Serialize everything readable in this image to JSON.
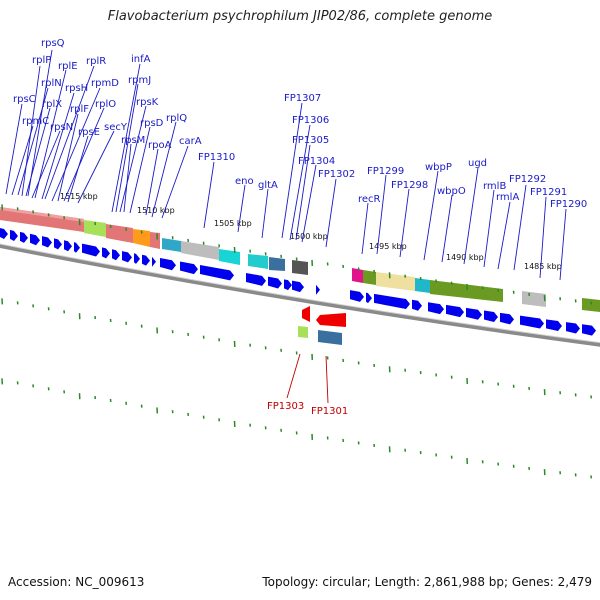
{
  "title": "Flavobacterium psychrophilum JIP02/86, complete genome",
  "footer": {
    "accession": "Accession: NC_009613",
    "stats": "Topology: circular; Length: 2,861,988 bp; Genes: 2,479"
  },
  "colors": {
    "forward_gene": "#0000ee",
    "reverse_gene": "#ee0000",
    "label_forward": "#1a1ac8",
    "label_reverse": "#c00000",
    "backbone": "#888888",
    "tick": "#2a8a2a"
  },
  "scale_labels": [
    "1515 kbp",
    "1510 kbp",
    "1505 kbp",
    "1500 kbp",
    "1495 kbp",
    "1490 kbp",
    "1485 kbp"
  ],
  "gene_labels_forward": [
    "rpsQ",
    "rplP",
    "rplE",
    "rplR",
    "rpsC",
    "rplN",
    "rpsH",
    "rpmD",
    "rpmC",
    "rplX",
    "rplF",
    "rplO",
    "rpsN",
    "rpsE",
    "secY",
    "infA",
    "rpmJ",
    "rpsK",
    "rpsD",
    "rpsM",
    "rpoA",
    "rplQ",
    "carA",
    "FP1310",
    "eno",
    "gltA",
    "FP1307",
    "FP1306",
    "FP1305",
    "FP1304",
    "FP1302",
    "recR",
    "FP1299",
    "FP1298",
    "wbpP",
    "wbpO",
    "ugd",
    "rmlB",
    "rmlA",
    "FP1292",
    "FP1291",
    "FP1290"
  ],
  "gene_labels_reverse": [
    "FP1303",
    "FP1301"
  ]
}
